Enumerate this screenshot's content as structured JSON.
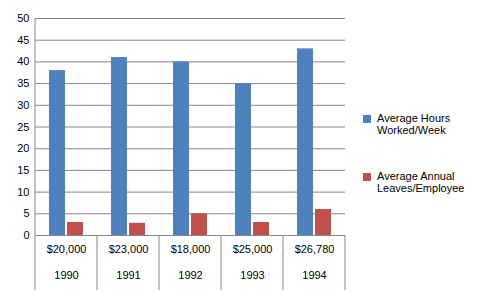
{
  "chart_data": {
    "type": "bar",
    "categories": [
      "1990",
      "1991",
      "1992",
      "1993",
      "1994"
    ],
    "inner_categories": [
      "$20,000",
      "$23,000",
      "$18,000",
      "$25,000",
      "$26,780"
    ],
    "series": [
      {
        "name": "Average Hours Worked/Week",
        "color": "#4f81bd",
        "values": [
          38,
          41,
          40,
          35,
          43
        ]
      },
      {
        "name": "Average Annual Leaves/Employee",
        "color": "#c0504d",
        "values": [
          3,
          2.8,
          5,
          3,
          6
        ]
      }
    ],
    "ylim": [
      0,
      50
    ],
    "yticks": [
      0,
      5,
      10,
      15,
      20,
      25,
      30,
      35,
      40,
      45,
      50
    ],
    "grid": true,
    "legend": "right"
  }
}
